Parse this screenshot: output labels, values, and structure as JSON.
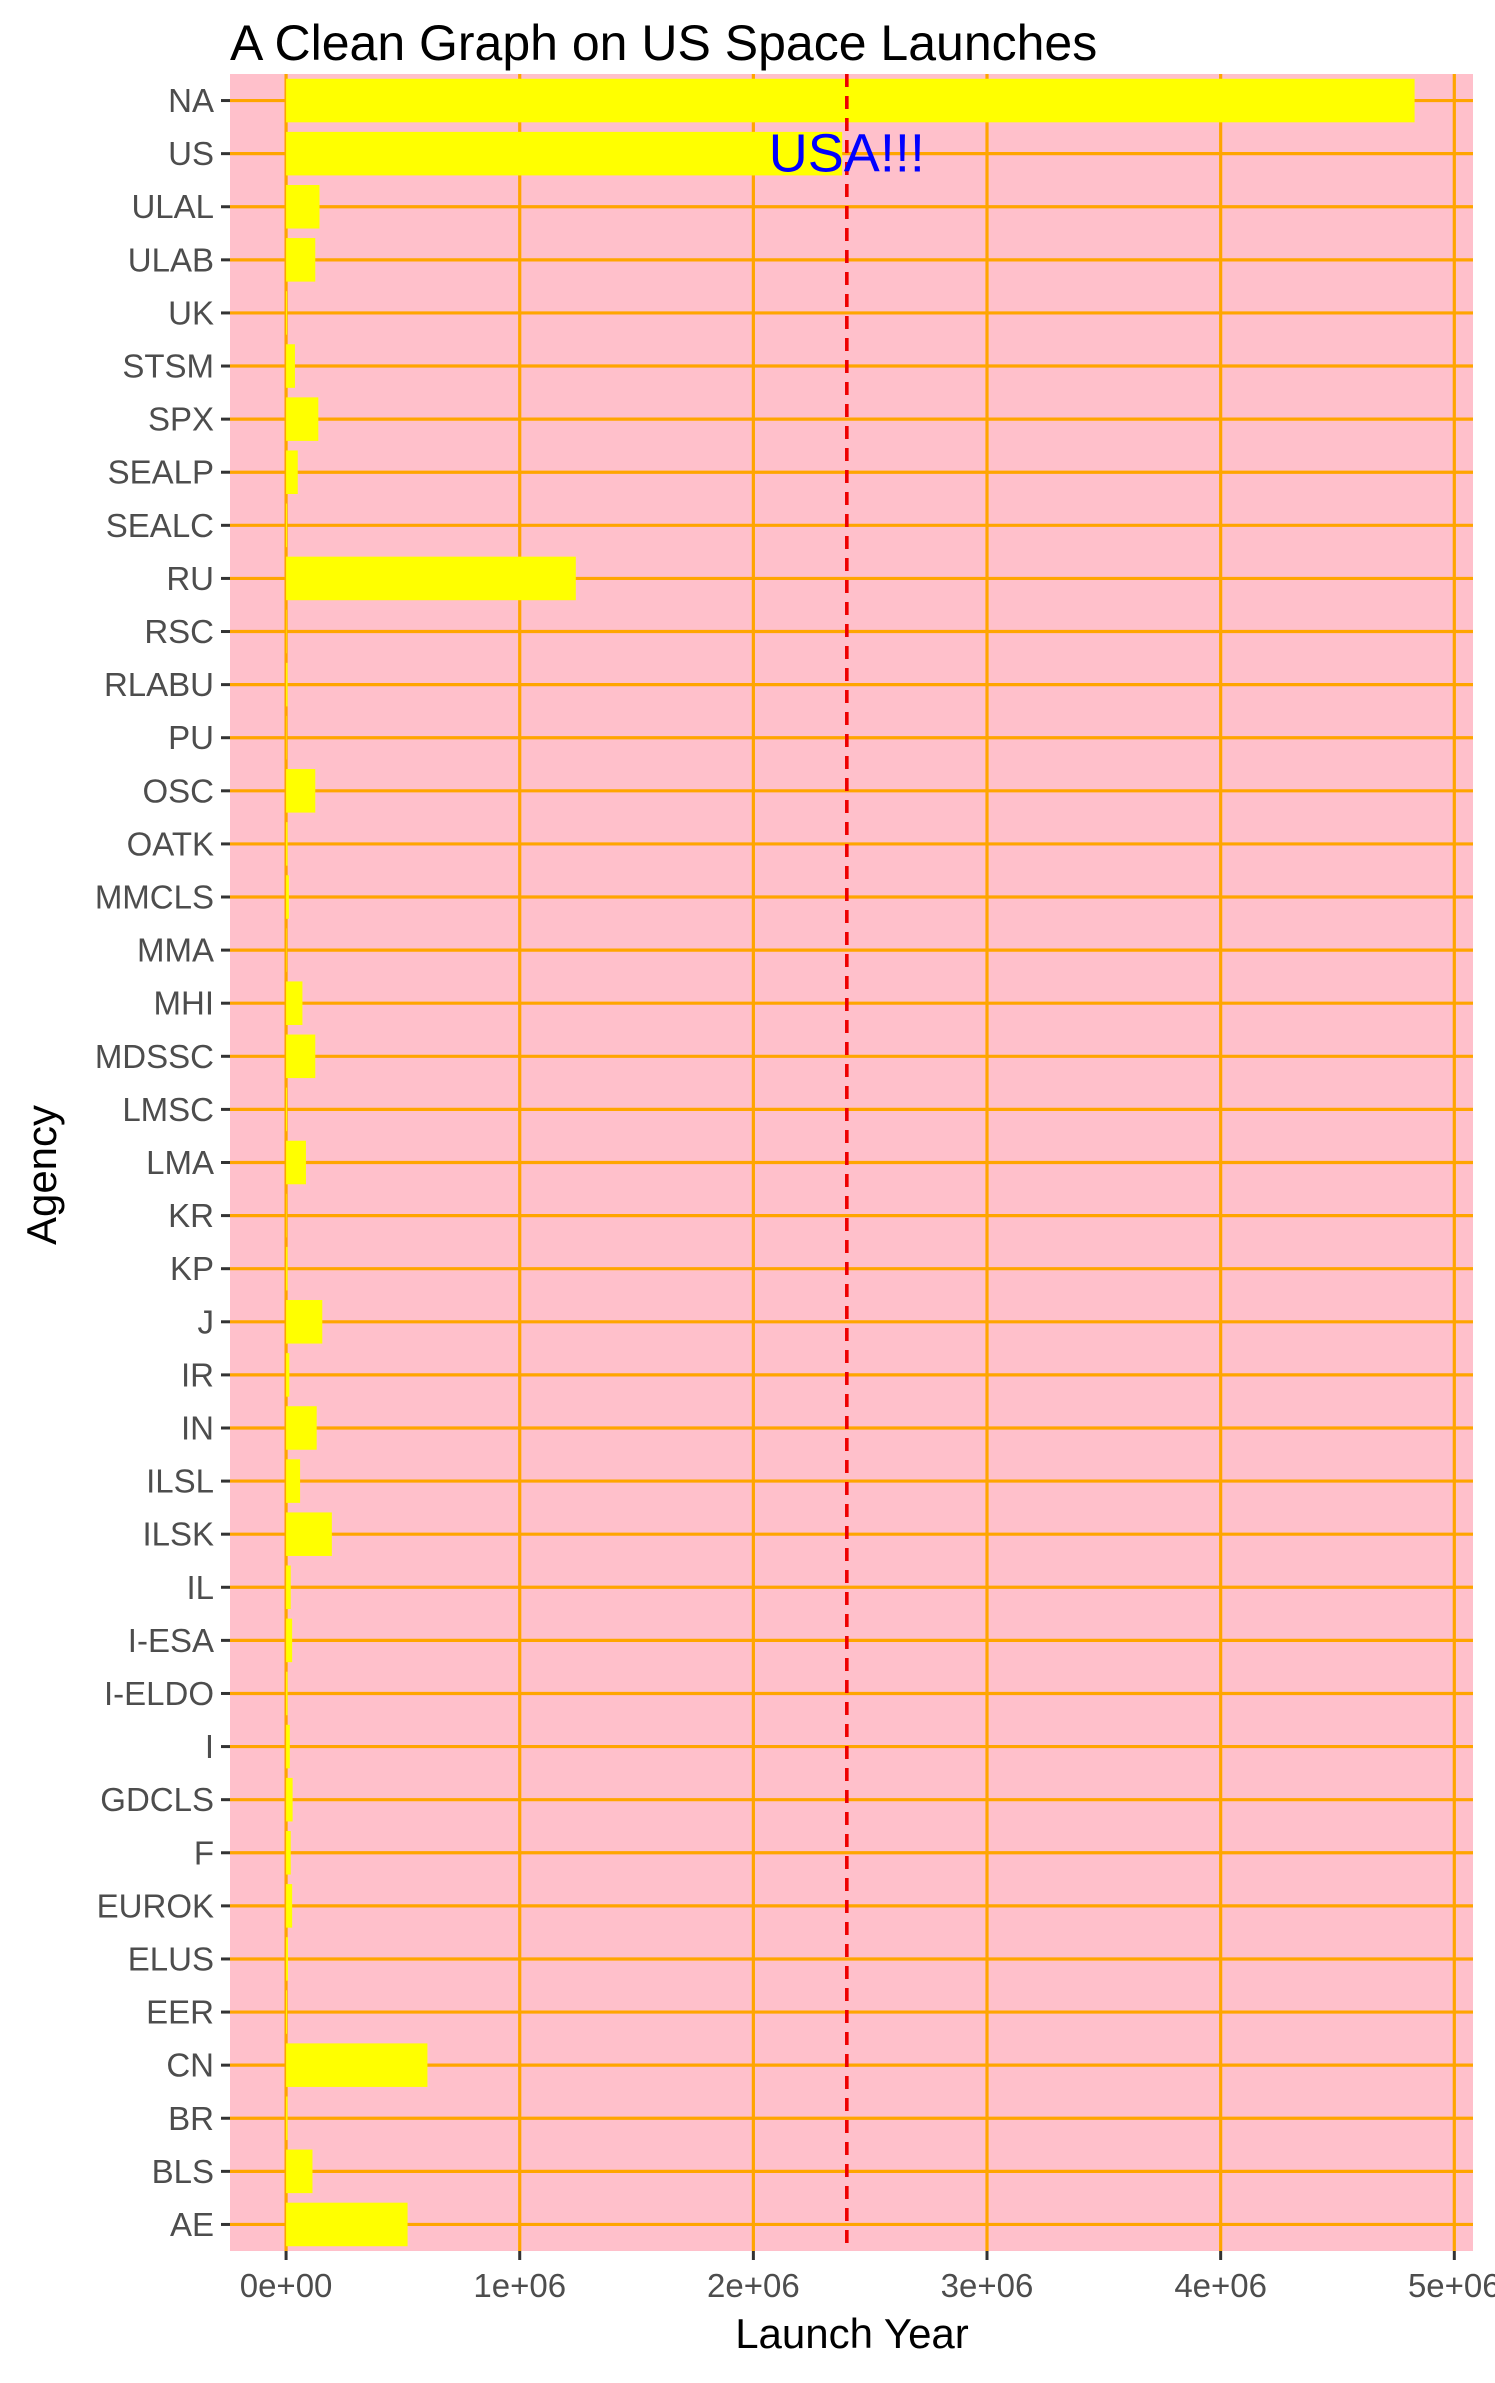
{
  "chart_data": {
    "type": "bar",
    "orientation": "horizontal",
    "title": "A Clean Graph on US Space Launches",
    "xlabel": "Launch Year",
    "ylabel": "Agency",
    "xlim": [
      -240000,
      5080000
    ],
    "xticks": [
      0,
      1000000,
      2000000,
      3000000,
      4000000,
      5000000
    ],
    "xtick_labels": [
      "0e+00",
      "1e+06",
      "2e+06",
      "3e+06",
      "4e+06",
      "5e+06"
    ],
    "grid": true,
    "categories": [
      "NA",
      "US",
      "ULAL",
      "ULAB",
      "UK",
      "STSM",
      "SPX",
      "SEALP",
      "SEALC",
      "RU",
      "RSC",
      "RLABU",
      "PU",
      "OSC",
      "OATK",
      "MMCLS",
      "MMA",
      "MHI",
      "MDSSC",
      "LMSC",
      "LMA",
      "KR",
      "KP",
      "J",
      "IR",
      "IN",
      "ILSL",
      "ILSK",
      "IL",
      "I-ESA",
      "I-ELDO",
      "I",
      "GDCLS",
      "F",
      "EUROK",
      "ELUS",
      "EER",
      "CN",
      "BR",
      "BLS",
      "AE"
    ],
    "values": [
      4830000,
      2380000,
      143000,
      125000,
      4000,
      38000,
      138000,
      50000,
      4000,
      1240000,
      2000,
      6000,
      2000,
      125000,
      6000,
      12000,
      2000,
      70000,
      125000,
      4000,
      85000,
      2000,
      6000,
      155000,
      14000,
      131000,
      60000,
      196000,
      20000,
      26000,
      6000,
      16000,
      28000,
      20000,
      26000,
      8000,
      4000,
      605000,
      6000,
      113000,
      520000
    ],
    "reference_line": {
      "x": 2400000,
      "style": "dashed",
      "color": "#ee0000"
    },
    "annotation": {
      "text": "USA!!!",
      "x": 2400000,
      "category": "US",
      "color": "#0000ff"
    },
    "colors": {
      "panel_background": "#ffc0cb",
      "bar_fill": "#ffff00",
      "grid": "#ffa500"
    }
  }
}
